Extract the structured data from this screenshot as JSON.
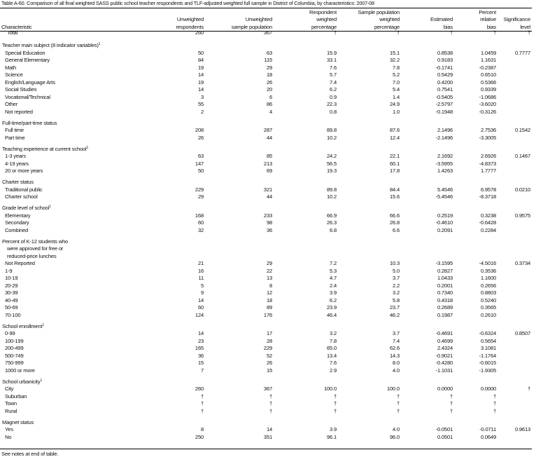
{
  "title": "Table A-60. Comparison of all final weighted SASS public school teacher respondents and TLF-adjusted weighted full sample in District of Columbia, by characteristics: 2007-08",
  "columns": [
    {
      "lines": [
        "Characteristic"
      ]
    },
    {
      "lines": [
        "Unweighted",
        "respondents"
      ]
    },
    {
      "lines": [
        "Unweighted",
        "sample population"
      ]
    },
    {
      "lines": [
        "Respondent",
        "weighted",
        "percentage"
      ]
    },
    {
      "lines": [
        "Sample population",
        "weighted",
        "percentage"
      ]
    },
    {
      "lines": [
        "Estimated",
        "bias"
      ]
    },
    {
      "lines": [
        "Percent",
        "relative",
        "bias"
      ]
    },
    {
      "lines": [
        "Significance",
        "level"
      ]
    }
  ],
  "total": {
    "label": "Total",
    "values": [
      "260",
      "367",
      "†",
      "†",
      "†",
      "†",
      "†"
    ]
  },
  "sections": [
    {
      "title": "Teacher main subject (8 indicator variables)",
      "sup": "1",
      "rows": [
        {
          "label": "Special Education",
          "values": [
            "50",
            "63",
            "15.9",
            "15.1",
            "0.8538",
            "1.0459",
            "0.7777"
          ]
        },
        {
          "label": "General Elementary",
          "values": [
            "84",
            "115",
            "33.1",
            "32.2",
            "0.9183",
            "1.1631",
            ""
          ]
        },
        {
          "label": "Math",
          "values": [
            "19",
            "29",
            "7.6",
            "7.8",
            "-0.1741",
            "-0.2387",
            ""
          ]
        },
        {
          "label": "Science",
          "values": [
            "14",
            "18",
            "5.7",
            "5.2",
            "0.5429",
            "0.6510",
            ""
          ]
        },
        {
          "label": "English/Language Arts",
          "values": [
            "19",
            "26",
            "7.4",
            "7.0",
            "0.4200",
            "0.5366",
            ""
          ]
        },
        {
          "label": "Social Studies",
          "values": [
            "14",
            "20",
            "6.2",
            "5.4",
            "0.7541",
            "0.9339",
            ""
          ]
        },
        {
          "label": "Vocational/Technical",
          "values": [
            "3",
            "6",
            "0.9",
            "1.4",
            "-0.5405",
            "-1.0686",
            ""
          ]
        },
        {
          "label": "Other",
          "values": [
            "55",
            "86",
            "22.3",
            "24.9",
            "-2.5797",
            "-3.6020",
            ""
          ]
        },
        {
          "label": "Not reported",
          "values": [
            "2",
            "4",
            "0.8",
            "1.0",
            "-0.1948",
            "-0.3126",
            ""
          ]
        }
      ]
    },
    {
      "title": "Full-time/part-time status",
      "sup": "",
      "rows": [
        {
          "label": "Full time",
          "values": [
            "208",
            "287",
            "89.8",
            "87.6",
            "2.1496",
            "2.7536",
            "0.1542"
          ]
        },
        {
          "label": "Part time",
          "values": [
            "26",
            "44",
            "10.2",
            "12.4",
            "-2.1496",
            "-3.3005",
            ""
          ]
        }
      ]
    },
    {
      "title": "Teaching experience at current school",
      "sup": "1",
      "rows": [
        {
          "label": "1-3 years",
          "values": [
            "63",
            "85",
            "24.2",
            "22.1",
            "2.1692",
            "2.6926",
            "0.1467"
          ]
        },
        {
          "label": "4-19 years",
          "values": [
            "147",
            "213",
            "56.5",
            "60.1",
            "-3.5955",
            "-4.8373",
            ""
          ]
        },
        {
          "label": "20 or more years",
          "values": [
            "50",
            "69",
            "19.3",
            "17.8",
            "1.4263",
            "1.7777",
            ""
          ]
        }
      ]
    },
    {
      "title": "Charter status",
      "sup": "",
      "rows": [
        {
          "label": "Traditional public",
          "values": [
            "229",
            "321",
            "89.8",
            "84.4",
            "5.4546",
            "6.9578",
            "0.0210"
          ]
        },
        {
          "label": "Charter school",
          "values": [
            "29",
            "44",
            "10.2",
            "15.6",
            "-5.4546",
            "-8.3718",
            ""
          ]
        }
      ]
    },
    {
      "title": "Grade level of school",
      "sup": "1",
      "rows": [
        {
          "label": "Elementary",
          "values": [
            "168",
            "233",
            "66.9",
            "66.6",
            "0.2519",
            "0.3238",
            "0.9575"
          ]
        },
        {
          "label": "Secondary",
          "values": [
            "60",
            "98",
            "26.3",
            "26.8",
            "-0.4610",
            "-0.6428",
            ""
          ]
        },
        {
          "label": "Combined",
          "values": [
            "32",
            "36",
            "6.8",
            "6.6",
            "0.2091",
            "0.2284",
            ""
          ]
        }
      ]
    },
    {
      "title": "Percent of K-12 students who",
      "title_lines": [
        "were approved for free or",
        "reduced-price lunches"
      ],
      "sup": "",
      "rows": [
        {
          "label": "Not Reported",
          "values": [
            "21",
            "29",
            "7.2",
            "10.3",
            "-3.1595",
            "-4.5016",
            "0.3734"
          ]
        },
        {
          "label": "1-9",
          "values": [
            "16",
            "22",
            "5.3",
            "5.0",
            "0.2827",
            "0.3536",
            ""
          ]
        },
        {
          "label": "10-19",
          "values": [
            "11",
            "13",
            "4.7",
            "3.7",
            "1.0433",
            "1.1600",
            ""
          ]
        },
        {
          "label": "20-29",
          "values": [
            "5",
            "8",
            "2.4",
            "2.2",
            "0.2001",
            "0.2656",
            ""
          ]
        },
        {
          "label": "30-39",
          "values": [
            "9",
            "12",
            "3.9",
            "3.2",
            "0.7340",
            "0.8803",
            ""
          ]
        },
        {
          "label": "40-49",
          "values": [
            "14",
            "18",
            "6.2",
            "5.8",
            "0.4318",
            "0.5240",
            ""
          ]
        },
        {
          "label": "50-69",
          "values": [
            "60",
            "89",
            "23.9",
            "23.7",
            "0.2689",
            "0.3565",
            ""
          ]
        },
        {
          "label": "70-100",
          "values": [
            "124",
            "176",
            "46.4",
            "46.2",
            "0.1987",
            "0.2610",
            ""
          ]
        }
      ]
    },
    {
      "title": "School enrollment",
      "sup": "1",
      "rows": [
        {
          "label": "0-99",
          "values": [
            "14",
            "17",
            "3.2",
            "3.7",
            "-0.4691",
            "-0.6324",
            "0.8507"
          ]
        },
        {
          "label": "100-199",
          "values": [
            "23",
            "28",
            "7.8",
            "7.4",
            "0.4699",
            "0.5654",
            ""
          ]
        },
        {
          "label": "200-499",
          "values": [
            "165",
            "229",
            "65.0",
            "62.6",
            "2.4324",
            "3.1081",
            ""
          ]
        },
        {
          "label": "500-749",
          "values": [
            "36",
            "52",
            "13.4",
            "14.3",
            "-0.9021",
            "-1.1764",
            ""
          ]
        },
        {
          "label": "750-999",
          "values": [
            "15",
            "26",
            "7.6",
            "8.0",
            "-0.4280",
            "-0.6015",
            ""
          ]
        },
        {
          "label": "1000 or more",
          "values": [
            "7",
            "15",
            "2.9",
            "4.0",
            "-1.1031",
            "-1.9305",
            ""
          ]
        }
      ]
    },
    {
      "title": "School urbanicity",
      "sup": "1",
      "rows": [
        {
          "label": "City",
          "values": [
            "260",
            "367",
            "100.0",
            "100.0",
            "0.0000",
            "0.0000",
            "†"
          ]
        },
        {
          "label": "Suburban",
          "values": [
            "†",
            "†",
            "†",
            "†",
            "†",
            "†",
            ""
          ]
        },
        {
          "label": "Town",
          "values": [
            "†",
            "†",
            "†",
            "†",
            "†",
            "†",
            ""
          ]
        },
        {
          "label": "Rural",
          "values": [
            "†",
            "†",
            "†",
            "†",
            "†",
            "†",
            ""
          ]
        }
      ]
    },
    {
      "title": "Magnet status",
      "sup": "",
      "rows": [
        {
          "label": "Yes",
          "values": [
            "8",
            "14",
            "3.9",
            "4.0",
            "-0.0501",
            "-0.0711",
            "0.9613"
          ]
        },
        {
          "label": "No",
          "values": [
            "250",
            "351",
            "96.1",
            "96.0",
            "0.0501",
            "0.0649",
            ""
          ]
        }
      ]
    }
  ],
  "footnote": "See notes at end of table."
}
